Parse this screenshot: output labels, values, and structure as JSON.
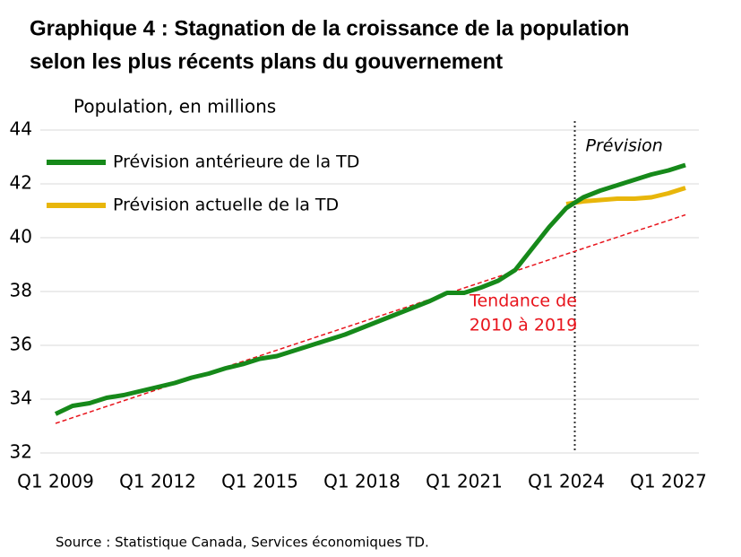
{
  "chart_data": {
    "type": "line",
    "title": [
      "Graphique 4 : Stagnation de la croissance de la population",
      "selon les plus récents plans du gouvernement"
    ],
    "y_label": "Population, en millions",
    "source": "Source : Statistique Canada, Services économiques TD.",
    "x": [
      2009,
      2009.5,
      2010,
      2010.5,
      2011,
      2011.5,
      2012,
      2012.5,
      2013,
      2013.5,
      2014,
      2014.5,
      2015,
      2015.5,
      2016,
      2016.5,
      2017,
      2017.5,
      2018,
      2018.5,
      2019,
      2019.5,
      2020,
      2020.5,
      2021,
      2021.5,
      2022,
      2022.5,
      2023,
      2023.5,
      2024,
      2024.5,
      2025,
      2025.5,
      2026,
      2026.5,
      2027,
      2027.5
    ],
    "series": [
      {
        "name": "Prévision antérieure de la TD",
        "color": "#16891a",
        "width": 5,
        "values": [
          33.45,
          33.75,
          33.85,
          34.05,
          34.15,
          34.3,
          34.45,
          34.6,
          34.8,
          34.95,
          35.15,
          35.3,
          35.5,
          35.6,
          35.8,
          36.0,
          36.2,
          36.4,
          36.65,
          36.9,
          37.15,
          37.4,
          37.65,
          37.95,
          37.95,
          38.15,
          38.4,
          38.8,
          39.6,
          40.4,
          41.1,
          41.5,
          41.75,
          41.95,
          42.15,
          42.35,
          42.5,
          42.7
        ]
      },
      {
        "name": "Prévision actuelle de la TD",
        "color": "#e8b60b",
        "width": 5,
        "values": [
          null,
          null,
          null,
          null,
          null,
          null,
          null,
          null,
          null,
          null,
          null,
          null,
          null,
          null,
          null,
          null,
          null,
          null,
          null,
          null,
          null,
          null,
          null,
          null,
          null,
          null,
          null,
          null,
          null,
          null,
          41.25,
          41.35,
          41.4,
          41.45,
          41.45,
          41.5,
          41.65,
          41.85
        ]
      },
      {
        "name": "Tendance de 2010 à 2019",
        "color": "#e8141c",
        "width": 1.5,
        "dashed": true,
        "legend": false,
        "label_lines": [
          "Tendance de",
          "2010 à 2019"
        ],
        "values": [
          33.1,
          33.31,
          33.52,
          33.73,
          33.94,
          34.15,
          34.36,
          34.57,
          34.78,
          34.99,
          35.2,
          35.4,
          35.61,
          35.82,
          36.03,
          36.24,
          36.45,
          36.66,
          36.87,
          37.08,
          37.29,
          37.5,
          37.71,
          37.92,
          38.13,
          38.34,
          38.55,
          38.76,
          38.97,
          39.18,
          39.39,
          39.6,
          39.81,
          40.02,
          40.23,
          40.43,
          40.64,
          40.85
        ]
      }
    ],
    "forecast": {
      "x": 2024.25,
      "label": "Prévision"
    },
    "xlim": [
      2009,
      2027.6
    ],
    "ylim": [
      32,
      44
    ],
    "xticks": [
      {
        "value": 2009,
        "label": "Q1 2009"
      },
      {
        "value": 2012,
        "label": "Q1 2012"
      },
      {
        "value": 2015,
        "label": "Q1 2015"
      },
      {
        "value": 2018,
        "label": "Q1 2018"
      },
      {
        "value": 2021,
        "label": "Q1 2021"
      },
      {
        "value": 2024,
        "label": "Q1 2024"
      },
      {
        "value": 2027,
        "label": "Q1 2027"
      }
    ],
    "yticks": [
      32,
      34,
      36,
      38,
      40,
      42,
      44
    ],
    "grid": true
  }
}
